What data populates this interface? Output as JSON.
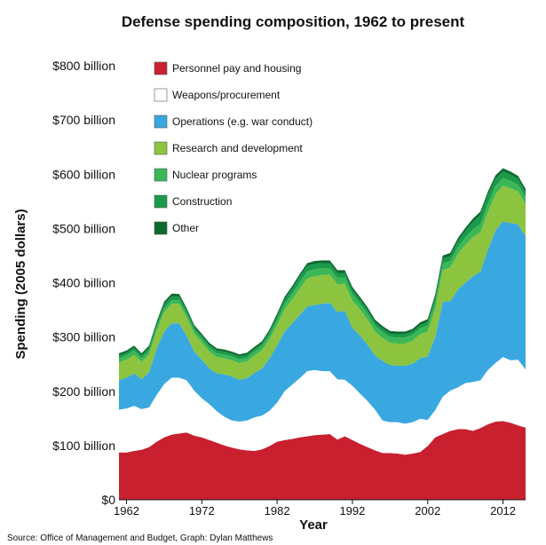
{
  "chart_data": {
    "type": "area",
    "stacked": true,
    "title": "Defense spending composition, 1962 to present",
    "xlabel": "Year",
    "ylabel": "Spending (2005 dollars)",
    "source": "Source: Office of Management and Budget, Graph: Dylan Matthews",
    "ylim": [
      0,
      800
    ],
    "yticks": [
      0,
      100,
      200,
      300,
      400,
      500,
      600,
      700,
      800
    ],
    "ytick_labels": [
      "$0",
      "$100 billion",
      "$200 billion",
      "$300 billion",
      "$400 billion",
      "$500 billion",
      "$600 billion",
      "$700 billion",
      "$800 billion"
    ],
    "xlim": [
      1961,
      2015
    ],
    "xticks": [
      1962,
      1972,
      1982,
      1992,
      2002,
      2012
    ],
    "grid": false,
    "legend_position": "top-left",
    "x": [
      1961,
      1962,
      1963,
      1964,
      1965,
      1966,
      1967,
      1968,
      1969,
      1970,
      1971,
      1972,
      1973,
      1974,
      1975,
      1976,
      1977,
      1978,
      1979,
      1980,
      1981,
      1982,
      1983,
      1984,
      1985,
      1986,
      1987,
      1988,
      1989,
      1990,
      1991,
      1992,
      1993,
      1994,
      1995,
      1996,
      1997,
      1998,
      1999,
      2000,
      2001,
      2002,
      2003,
      2004,
      2005,
      2006,
      2007,
      2008,
      2009,
      2010,
      2011,
      2012,
      2013,
      2014,
      2015
    ],
    "series": [
      {
        "name": "Personnel pay and housing",
        "color": "#c8202f",
        "values": [
          87,
          87,
          90,
          92,
          97,
          107,
          115,
          120,
          122,
          124,
          118,
          115,
          110,
          105,
          100,
          96,
          93,
          91,
          90,
          93,
          99,
          107,
          110,
          112,
          115,
          117,
          119,
          120,
          121,
          111,
          117,
          110,
          103,
          97,
          91,
          86,
          86,
          85,
          83,
          85,
          88,
          99,
          115,
          121,
          127,
          130,
          130,
          127,
          132,
          139,
          144,
          145,
          142,
          137,
          133
        ]
      },
      {
        "name": "Weapons/procurement",
        "color": "#ffffff",
        "values": [
          79,
          81,
          83,
          75,
          73,
          86,
          98,
          105,
          103,
          96,
          83,
          72,
          66,
          58,
          53,
          50,
          51,
          55,
          62,
          62,
          65,
          72,
          90,
          100,
          109,
          120,
          120,
          117,
          116,
          111,
          104,
          100,
          93,
          85,
          75,
          60,
          57,
          58,
          57,
          58,
          61,
          48,
          50,
          69,
          74,
          77,
          85,
          90,
          88,
          100,
          108,
          118,
          115,
          121,
          107
        ]
      },
      {
        "name": "Operations (e.g. war conduct)",
        "color": "#3aa8e0",
        "values": [
          54,
          57,
          60,
          55,
          65,
          85,
          97,
          100,
          100,
          82,
          72,
          71,
          66,
          70,
          78,
          81,
          77,
          78,
          82,
          87,
          97,
          105,
          110,
          113,
          117,
          119,
          120,
          124,
          126,
          124,
          127,
          107,
          107,
          104,
          100,
          110,
          105,
          104,
          107,
          108,
          112,
          117,
          135,
          175,
          165,
          180,
          185,
          195,
          200,
          222,
          244,
          250,
          253,
          250,
          245
        ]
      },
      {
        "name": "Research and development",
        "color": "#8cc43f",
        "values": [
          33,
          33,
          34,
          32,
          33,
          33,
          36,
          36,
          36,
          34,
          33,
          32,
          31,
          30,
          30,
          30,
          31,
          31,
          32,
          33,
          35,
          38,
          41,
          44,
          48,
          52,
          53,
          53,
          52,
          51,
          50,
          50,
          48,
          46,
          44,
          42,
          41,
          41,
          41,
          42,
          44,
          46,
          52,
          58,
          62,
          66,
          70,
          72,
          73,
          70,
          67,
          66,
          64,
          60,
          60
        ]
      },
      {
        "name": "Nuclear programs",
        "color": "#3bb758",
        "values": [
          8,
          8,
          8,
          7,
          7,
          7,
          7,
          7,
          7,
          7,
          7,
          7,
          7,
          7,
          7,
          7,
          7,
          7,
          7,
          8,
          8,
          9,
          10,
          11,
          12,
          13,
          13,
          13,
          12,
          12,
          12,
          12,
          11,
          11,
          11,
          11,
          11,
          11,
          11,
          11,
          11,
          11,
          12,
          12,
          12,
          13,
          13,
          14,
          15,
          15,
          15,
          14,
          14,
          13,
          13
        ]
      },
      {
        "name": "Construction",
        "color": "#1a9a4a",
        "values": [
          5,
          5,
          5,
          5,
          5,
          6,
          7,
          7,
          6,
          6,
          5,
          5,
          5,
          5,
          5,
          5,
          5,
          5,
          5,
          5,
          6,
          7,
          8,
          9,
          10,
          10,
          10,
          9,
          9,
          9,
          8,
          8,
          7,
          7,
          6,
          6,
          6,
          6,
          6,
          6,
          6,
          7,
          8,
          9,
          9,
          10,
          12,
          14,
          17,
          16,
          14,
          12,
          11,
          10,
          9
        ]
      },
      {
        "name": "Other",
        "color": "#0e6b30",
        "values": [
          4,
          4,
          4,
          4,
          4,
          4,
          5,
          5,
          5,
          4,
          4,
          4,
          4,
          4,
          4,
          4,
          4,
          4,
          4,
          4,
          4,
          5,
          5,
          5,
          5,
          5,
          5,
          5,
          5,
          5,
          5,
          5,
          5,
          5,
          5,
          5,
          5,
          5,
          5,
          5,
          5,
          5,
          6,
          6,
          6,
          6,
          6,
          6,
          6,
          6,
          6,
          6,
          6,
          6,
          6
        ]
      }
    ]
  }
}
